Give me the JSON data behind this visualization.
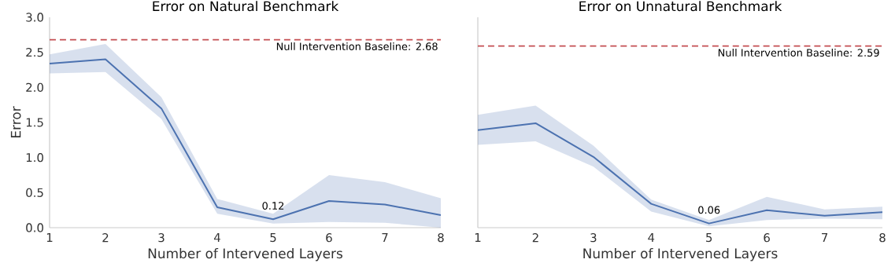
{
  "chart_data": [
    {
      "type": "line",
      "title": "Error on Natural Benchmark",
      "xlabel": "Number of Intervened Layers",
      "ylabel": "Error",
      "x": [
        1,
        2,
        3,
        4,
        5,
        6,
        7,
        8
      ],
      "xlim": [
        1,
        8
      ],
      "ylim": [
        0,
        3.0
      ],
      "xticks": [
        1,
        2,
        3,
        4,
        5,
        6,
        7,
        8
      ],
      "yticks": [
        {
          "value": 0,
          "label": "0.0"
        },
        0.5,
        {
          "value": 1,
          "label": "1.0"
        },
        1.5,
        {
          "value": 2,
          "label": "2.0"
        },
        2.5,
        {
          "value": 3,
          "label": "3.0"
        }
      ],
      "series": [
        {
          "color": "#4c72b0",
          "values": [
            2.34,
            2.4,
            1.7,
            0.29,
            0.12,
            0.38,
            0.33,
            0.18
          ],
          "lower": [
            2.2,
            2.22,
            1.55,
            0.2,
            0.06,
            0.08,
            0.07,
            0.0
          ],
          "upper": [
            2.47,
            2.62,
            1.86,
            0.41,
            0.2,
            0.75,
            0.65,
            0.42
          ]
        }
      ],
      "ref_lines": [
        {
          "axis": "y",
          "value": 2.68,
          "label": "Null Intervention Baseline: 2.68",
          "color": "#c44e52",
          "line_style": "dashed"
        }
      ],
      "annotations": [
        {
          "text": "0.12",
          "x": 5,
          "y": 0.12
        }
      ]
    },
    {
      "type": "line",
      "title": "Error on Unnatural Benchmark",
      "xlabel": "Number of Intervened Layers",
      "x": [
        1,
        2,
        3,
        4,
        5,
        6,
        7,
        8
      ],
      "xlim": [
        1,
        8
      ],
      "ylim": [
        0,
        3.0
      ],
      "xticks": [
        1,
        2,
        3,
        4,
        5,
        6,
        7,
        8
      ],
      "yticks": [
        0,
        0.5,
        1,
        1.5,
        2,
        2.5,
        3
      ],
      "tick_labels": "x",
      "series": [
        {
          "color": "#4c72b0",
          "values": [
            1.39,
            1.49,
            1.01,
            0.34,
            0.06,
            0.25,
            0.17,
            0.22
          ],
          "lower": [
            1.18,
            1.23,
            0.87,
            0.23,
            0.02,
            0.11,
            0.13,
            0.12
          ],
          "upper": [
            1.61,
            1.74,
            1.17,
            0.4,
            0.11,
            0.44,
            0.26,
            0.3
          ]
        }
      ],
      "ref_lines": [
        {
          "axis": "y",
          "value": 2.59,
          "label": "Null Intervention Baseline: 2.59",
          "color": "#c44e52",
          "line_style": "dashed"
        }
      ],
      "annotations": [
        {
          "text": "0.06",
          "x": 5,
          "y": 0.06
        }
      ]
    }
  ]
}
